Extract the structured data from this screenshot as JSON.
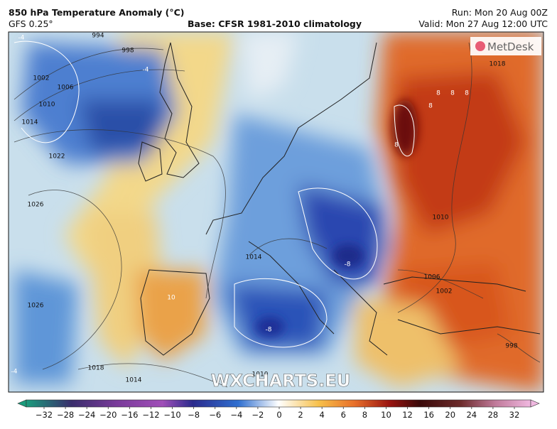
{
  "header": {
    "title": "850 hPa Temperature Anomaly (°C)",
    "model": "GFS 0.25°",
    "base": "Base: CFSR 1981-2010 climatology",
    "run": "Run: Mon 20 Aug 00Z",
    "valid": "Valid: Mon 27 Aug 12:00 UTC"
  },
  "logo": "MetDesk",
  "watermark": "WXCHARTS.EU",
  "colorbar": {
    "ticks": [
      "−32",
      "−28",
      "−24",
      "−20",
      "−16",
      "−12",
      "−10",
      "−8",
      "−6",
      "−4",
      "−2",
      "0",
      "2",
      "4",
      "6",
      "8",
      "10",
      "12",
      "16",
      "20",
      "24",
      "28",
      "32"
    ]
  },
  "isobar_labels": [
    "994",
    "998",
    "1002",
    "1006",
    "1010",
    "1014",
    "1022",
    "1026",
    "1026",
    "1018",
    "1014",
    "1018",
    "1010",
    "1006",
    "1002",
    "998",
    "1014",
    "1010"
  ],
  "anomaly_labels": [
    "-4",
    "-4",
    "8",
    "8",
    "8",
    "8",
    "8",
    "-8",
    "-8",
    "10",
    "-4"
  ]
}
